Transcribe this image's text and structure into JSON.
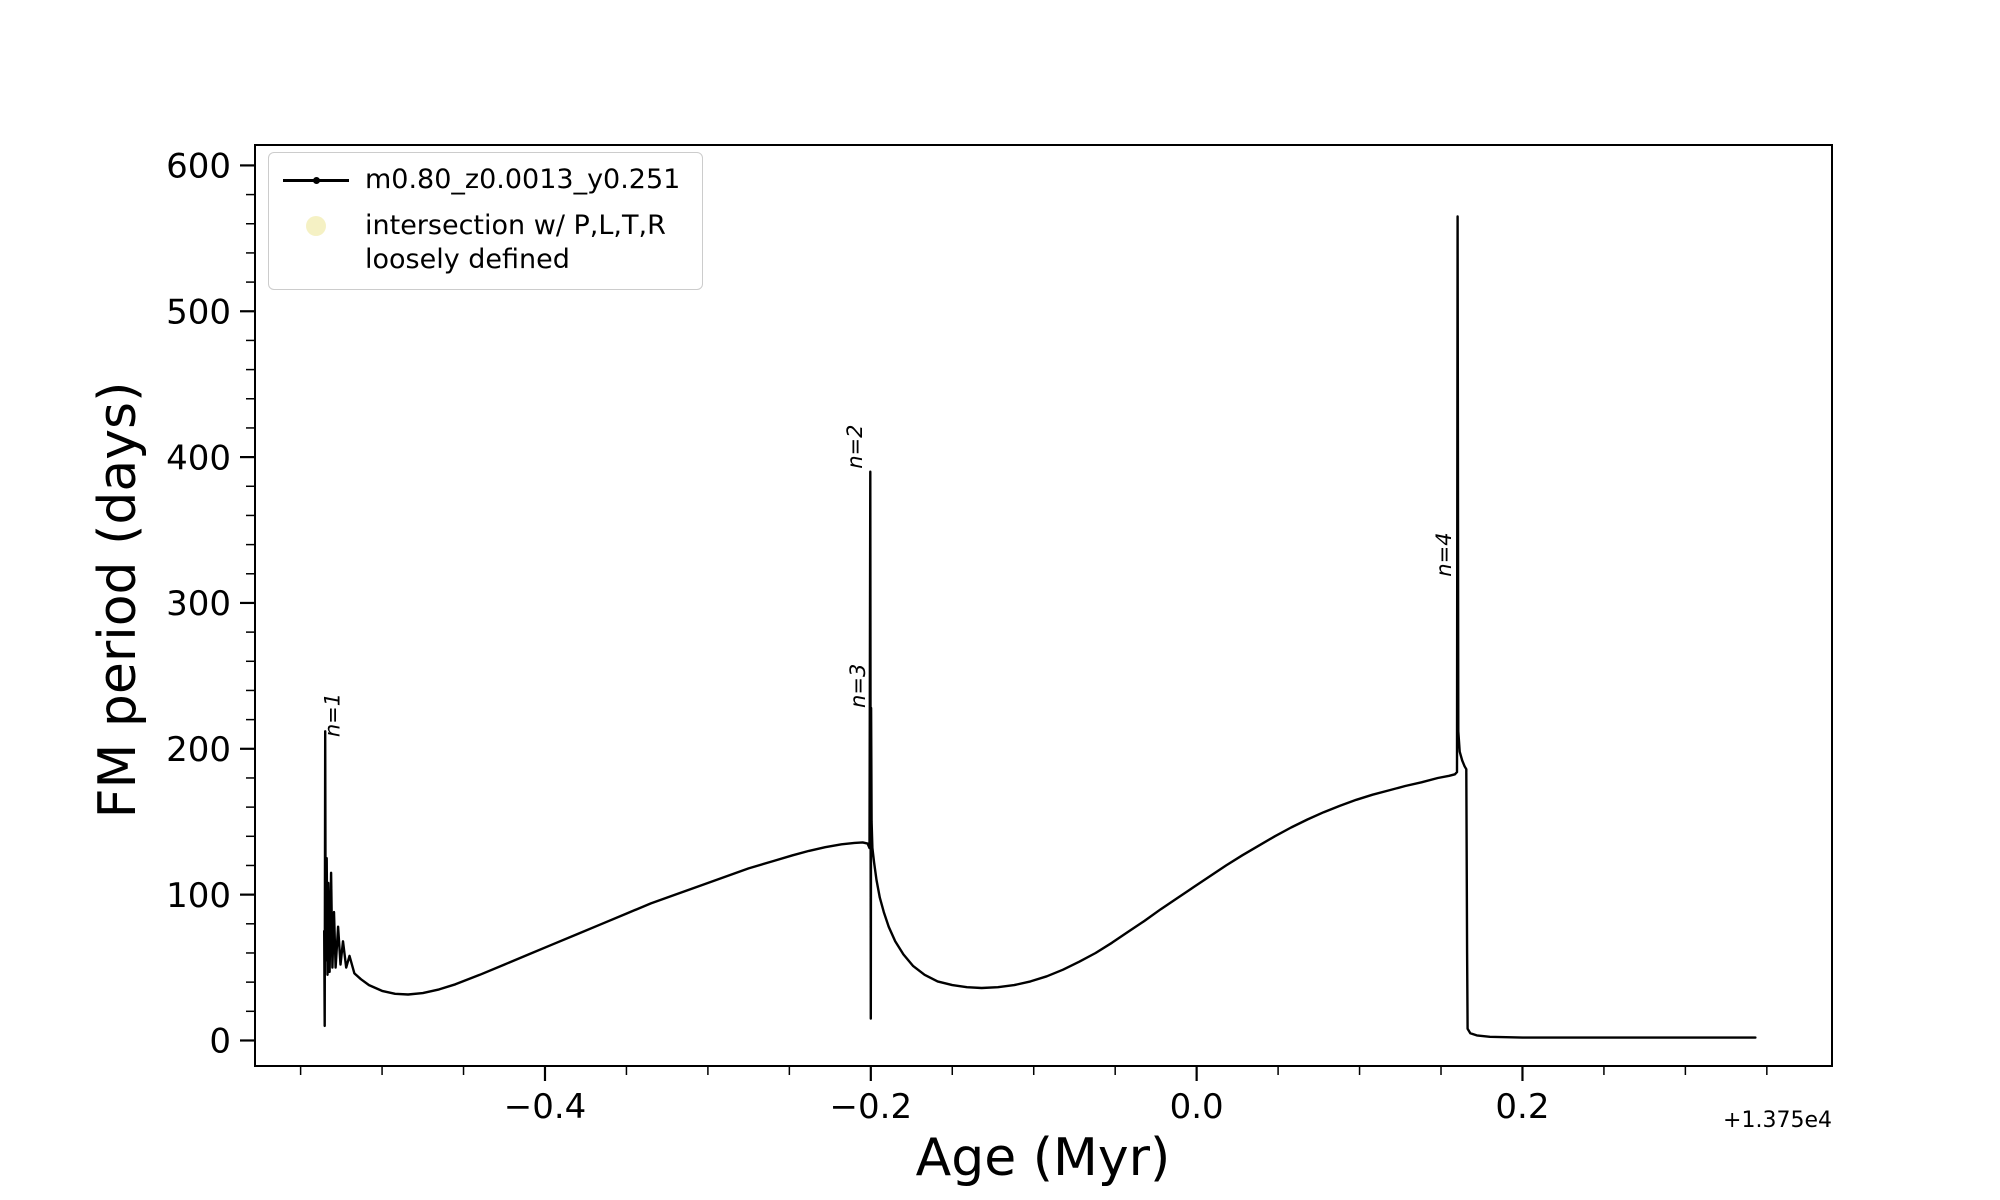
{
  "chart_data": {
    "type": "line",
    "title": "",
    "xlabel": "Age (Myr)",
    "ylabel": "FM period (days)",
    "x_axis_offset_label": "+1.375e4",
    "xlim": [
      -0.578,
      0.39
    ],
    "ylim": [
      -17.5,
      614
    ],
    "xticks": [
      -0.4,
      -0.2,
      0.0,
      0.2
    ],
    "xtick_labels": [
      "−0.4",
      "−0.2",
      "0.0",
      "0.2"
    ],
    "yticks": [
      0,
      100,
      200,
      300,
      400,
      500,
      600
    ],
    "ytick_labels": [
      "0",
      "100",
      "200",
      "300",
      "400",
      "500",
      "600"
    ],
    "x_minor_step": 0.05,
    "y_minor_step": 20,
    "grid": false,
    "legend": {
      "position": "upper-left",
      "entries": [
        {
          "label": "m0.80_z0.0013_y0.251",
          "marker": "line-with-dot",
          "color": "#000000"
        },
        {
          "label": "intersection w/ P,L,T,R\nloosely defined",
          "marker": "circle",
          "color": "#efe9a5"
        }
      ]
    },
    "annotations": [
      {
        "text": "n=1",
        "x": -0.526,
        "y": 208,
        "rotation": 90
      },
      {
        "text": "n=2",
        "x": -0.2055,
        "y": 392,
        "rotation": 90
      },
      {
        "text": "n=3",
        "x": -0.2035,
        "y": 228,
        "rotation": 90
      },
      {
        "text": "n=4",
        "x": 0.156,
        "y": 318,
        "rotation": 90
      }
    ],
    "series": [
      {
        "name": "m0.80_z0.0013_y0.251",
        "color": "#000000",
        "points": [
          [
            -0.5355,
            75
          ],
          [
            -0.5352,
            10
          ],
          [
            -0.5349,
            212
          ],
          [
            -0.5346,
            55
          ],
          [
            -0.534,
            125
          ],
          [
            -0.5335,
            45
          ],
          [
            -0.533,
            108
          ],
          [
            -0.5322,
            47
          ],
          [
            -0.5313,
            115
          ],
          [
            -0.5305,
            50
          ],
          [
            -0.5295,
            88
          ],
          [
            -0.5285,
            50
          ],
          [
            -0.527,
            78
          ],
          [
            -0.5255,
            52
          ],
          [
            -0.524,
            68
          ],
          [
            -0.522,
            50
          ],
          [
            -0.52,
            58
          ],
          [
            -0.517,
            46
          ],
          [
            -0.513,
            42
          ],
          [
            -0.508,
            38
          ],
          [
            -0.5,
            34
          ],
          [
            -0.492,
            32
          ],
          [
            -0.484,
            31.5
          ],
          [
            -0.475,
            32.5
          ],
          [
            -0.465,
            35
          ],
          [
            -0.455,
            38.5
          ],
          [
            -0.44,
            45
          ],
          [
            -0.425,
            52
          ],
          [
            -0.41,
            59
          ],
          [
            -0.395,
            66
          ],
          [
            -0.38,
            73
          ],
          [
            -0.365,
            80
          ],
          [
            -0.35,
            87
          ],
          [
            -0.335,
            94
          ],
          [
            -0.32,
            100
          ],
          [
            -0.305,
            106
          ],
          [
            -0.29,
            112
          ],
          [
            -0.275,
            118
          ],
          [
            -0.26,
            123
          ],
          [
            -0.248,
            127
          ],
          [
            -0.238,
            130
          ],
          [
            -0.228,
            132.5
          ],
          [
            -0.218,
            134.5
          ],
          [
            -0.21,
            135.5
          ],
          [
            -0.205,
            135.8
          ],
          [
            -0.202,
            135
          ],
          [
            -0.2008,
            132
          ],
          [
            -0.2003,
            390
          ],
          [
            -0.2,
            15
          ],
          [
            -0.1998,
            228
          ],
          [
            -0.1995,
            150
          ],
          [
            -0.199,
            132
          ],
          [
            -0.198,
            122
          ],
          [
            -0.1965,
            110
          ],
          [
            -0.1945,
            98
          ],
          [
            -0.192,
            88
          ],
          [
            -0.189,
            78
          ],
          [
            -0.185,
            68
          ],
          [
            -0.18,
            59
          ],
          [
            -0.174,
            51
          ],
          [
            -0.167,
            45
          ],
          [
            -0.159,
            40.5
          ],
          [
            -0.15,
            38
          ],
          [
            -0.141,
            36.5
          ],
          [
            -0.132,
            36
          ],
          [
            -0.122,
            36.5
          ],
          [
            -0.112,
            38
          ],
          [
            -0.102,
            40.5
          ],
          [
            -0.092,
            44
          ],
          [
            -0.082,
            48.5
          ],
          [
            -0.072,
            54
          ],
          [
            -0.062,
            60
          ],
          [
            -0.052,
            67
          ],
          [
            -0.042,
            74.5
          ],
          [
            -0.032,
            82
          ],
          [
            -0.022,
            90
          ],
          [
            -0.012,
            97.5
          ],
          [
            -0.002,
            105
          ],
          [
            0.008,
            112.5
          ],
          [
            0.018,
            120
          ],
          [
            0.028,
            127
          ],
          [
            0.038,
            133.5
          ],
          [
            0.048,
            140
          ],
          [
            0.058,
            146
          ],
          [
            0.068,
            151.5
          ],
          [
            0.078,
            156.5
          ],
          [
            0.088,
            161
          ],
          [
            0.098,
            165
          ],
          [
            0.108,
            168.5
          ],
          [
            0.118,
            171.5
          ],
          [
            0.128,
            174.5
          ],
          [
            0.138,
            177
          ],
          [
            0.148,
            180
          ],
          [
            0.155,
            181.5
          ],
          [
            0.1585,
            182.5
          ],
          [
            0.1598,
            184
          ],
          [
            0.1602,
            565
          ],
          [
            0.1606,
            212
          ],
          [
            0.1615,
            198
          ],
          [
            0.163,
            192
          ],
          [
            0.1645,
            188
          ],
          [
            0.1655,
            186
          ],
          [
            0.166,
            60
          ],
          [
            0.1663,
            8
          ],
          [
            0.168,
            5
          ],
          [
            0.172,
            3.5
          ],
          [
            0.18,
            2.5
          ],
          [
            0.2,
            2
          ],
          [
            0.24,
            2
          ],
          [
            0.3,
            2
          ],
          [
            0.343,
            2
          ]
        ]
      }
    ]
  }
}
